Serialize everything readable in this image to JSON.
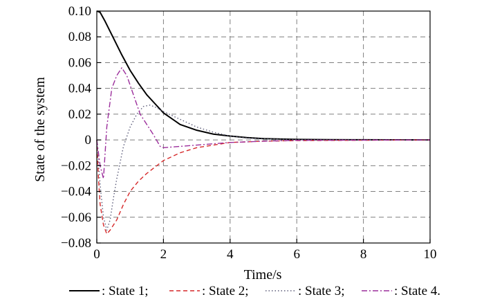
{
  "chart_data": {
    "type": "line",
    "title": "",
    "xlabel": "Time/s",
    "ylabel": "State of the system",
    "xlim": [
      0,
      10
    ],
    "ylim": [
      -0.08,
      0.1
    ],
    "xticks": [
      0,
      2,
      4,
      6,
      8,
      10
    ],
    "xtick_labels": [
      "0",
      "2",
      "4",
      "6",
      "8",
      "10"
    ],
    "yticks": [
      0.1,
      0.08,
      0.06,
      0.04,
      0.02,
      0,
      -0.02,
      -0.04,
      -0.06,
      -0.08
    ],
    "ytick_labels": [
      "0.10",
      "0.08",
      "0.06",
      "0.04",
      "0.02",
      "0",
      "−0.02",
      "−0.04",
      "−0.06",
      "−0.08"
    ],
    "grid": true,
    "legend_position": "bottom",
    "series": [
      {
        "name": ": State 1;",
        "color": "#000000",
        "dash": "solid",
        "x": [
          0,
          0.1,
          0.25,
          0.5,
          0.75,
          1,
          1.25,
          1.5,
          1.75,
          2,
          2.5,
          3,
          3.5,
          4,
          4.5,
          5,
          6,
          7,
          8,
          10
        ],
        "y": [
          0.1,
          0.099,
          0.092,
          0.079,
          0.066,
          0.054,
          0.044,
          0.035,
          0.028,
          0.021,
          0.012,
          0.0075,
          0.0045,
          0.003,
          0.0018,
          0.001,
          0.0004,
          0.0002,
          0.0001,
          0
        ]
      },
      {
        "name": ": State 2;",
        "color": "#d62728",
        "dash": "dashed",
        "x": [
          0,
          0.05,
          0.1,
          0.2,
          0.3,
          0.4,
          0.6,
          0.8,
          1,
          1.25,
          1.5,
          2,
          2.5,
          3,
          3.5,
          4,
          5,
          6,
          10
        ],
        "y": [
          0,
          -0.03,
          -0.05,
          -0.066,
          -0.073,
          -0.07,
          -0.062,
          -0.05,
          -0.04,
          -0.032,
          -0.026,
          -0.016,
          -0.01,
          -0.006,
          -0.004,
          -0.002,
          -0.001,
          -0.0005,
          0
        ]
      },
      {
        "name": ": State 3;",
        "color": "#5a5a78",
        "dash": "dotted",
        "x": [
          0,
          0.1,
          0.2,
          0.3,
          0.4,
          0.5,
          0.6,
          0.8,
          1,
          1.2,
          1.4,
          1.6,
          1.8,
          2,
          2.5,
          3,
          3.5,
          4,
          4.5,
          5,
          6,
          10
        ],
        "y": [
          0,
          -0.035,
          -0.06,
          -0.07,
          -0.062,
          -0.045,
          -0.03,
          -0.005,
          0.01,
          0.02,
          0.026,
          0.027,
          0.025,
          0.022,
          0.016,
          0.01,
          0.006,
          0.003,
          0.0015,
          0.0008,
          0.0002,
          0
        ]
      },
      {
        "name": ": State 4.",
        "color": "#9b2d9b",
        "dash": "dashdot",
        "x": [
          0,
          0.1,
          0.2,
          0.3,
          0.45,
          0.6,
          0.75,
          0.9,
          1.1,
          1.3,
          1.5,
          1.7,
          1.9,
          2,
          2.5,
          3,
          3.5,
          4,
          5,
          6,
          10
        ],
        "y": [
          0,
          -0.02,
          -0.03,
          0.01,
          0.04,
          0.05,
          0.056,
          0.05,
          0.035,
          0.02,
          0.012,
          0.004,
          -0.005,
          -0.006,
          -0.005,
          -0.004,
          -0.003,
          -0.002,
          -0.001,
          -0.0003,
          0
        ]
      }
    ]
  }
}
